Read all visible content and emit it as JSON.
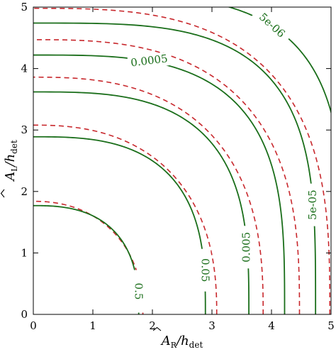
{
  "chart_data": {
    "type": "contour",
    "xlabel_base": "A",
    "xlabel_sub": "R",
    "xlabel_den": "h",
    "xlabel_den_sub": "det",
    "ylabel_base": "A",
    "ylabel_sub": "L",
    "ylabel_den": "h",
    "ylabel_den_sub": "det",
    "xlim": [
      0,
      5
    ],
    "ylim": [
      0,
      5
    ],
    "xticks": [
      "0",
      "1",
      "2",
      "3",
      "4",
      "5"
    ],
    "yticks": [
      "0",
      "1",
      "2",
      "3",
      "4",
      "5"
    ],
    "grid": false,
    "colors": {
      "solid": "#1a6e1a",
      "dashed": "#c8282d"
    },
    "solid_contours": [
      {
        "level_label": "0.5",
        "r": 1.77,
        "p": 2.6
      },
      {
        "level_label": "0.05",
        "r": 2.89,
        "p": 2.9
      },
      {
        "level_label": "0.005",
        "r": 3.62,
        "p": 3.1
      },
      {
        "level_label": "0.0005",
        "r": 4.22,
        "p": 3.3
      },
      {
        "level_label": "5e-05",
        "r": 4.74,
        "p": 3.6
      },
      {
        "level_label": "5e-06",
        "r": 5.22,
        "p": 4.0
      }
    ],
    "dashed_contours": [
      {
        "r": 1.84,
        "p": 2.2
      },
      {
        "r": 3.08,
        "p": 2.4
      },
      {
        "r": 3.86,
        "p": 2.6
      },
      {
        "r": 4.47,
        "p": 2.8
      },
      {
        "r": 4.98,
        "p": 3.0
      }
    ]
  }
}
